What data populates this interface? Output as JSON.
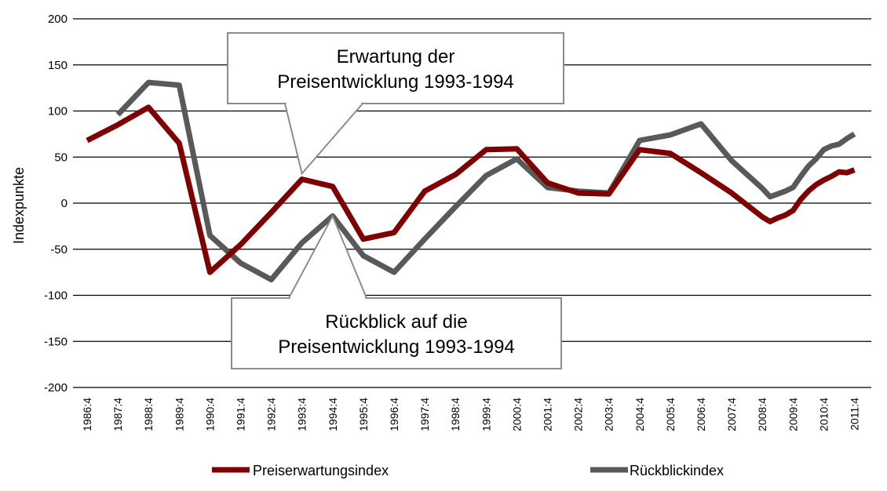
{
  "chart_data": {
    "type": "line",
    "title": "",
    "xlabel": "",
    "ylabel": "Indexpunkte",
    "ylim": [
      -200,
      200
    ],
    "yticks": [
      200,
      150,
      100,
      50,
      0,
      -50,
      -100,
      -150,
      -200
    ],
    "grid": "horizontal",
    "legend_position": "bottom",
    "categories": [
      "1986:4",
      "1987:4",
      "1988:4",
      "1989:4",
      "1990:4",
      "1991:4",
      "1992:4",
      "1993:4",
      "1994:4",
      "1995:4",
      "1996:4",
      "1997:4",
      "1998:4",
      "1999:4",
      "2000:4",
      "2001:4",
      "2002:4",
      "2003:4",
      "2004:4",
      "2005:4",
      "2006:4",
      "2007:4",
      "2008:4",
      "2009:4",
      "2010:4",
      "2011:4"
    ],
    "series": [
      {
        "name": "Preiserwartungsindex",
        "color": "#7f0000",
        "x": [
          "1986:4",
          "1987:4",
          "1988:4",
          "1989:4",
          "1990:4",
          "1991:4",
          "1992:4",
          "1993:4",
          "1994:4",
          "1995:4",
          "1996:4",
          "1997:4",
          "1998:4",
          "1999:4",
          "2000:4",
          "2001:4",
          "2002:4",
          "2003:4",
          "2004:4",
          "2005:4",
          "2006:4",
          "2007:4",
          "2008:4",
          "2009:1",
          "2009:2",
          "2009:3",
          "2009:4",
          "2010:1",
          "2010:2",
          "2010:3",
          "2010:4",
          "2011:1",
          "2011:2",
          "2011:3",
          "2011:4"
        ],
        "values": [
          68,
          85,
          104,
          65,
          -75,
          -45,
          -10,
          26,
          18,
          -39,
          -32,
          13,
          31,
          58,
          59,
          22,
          11,
          10,
          58,
          54,
          33,
          11,
          -15,
          -20,
          -16,
          -13,
          -8,
          4,
          13,
          20,
          25,
          29,
          34,
          33,
          36
        ]
      },
      {
        "name": "Rückblickindex",
        "color": "#595959",
        "x": [
          "1987:4",
          "1988:4",
          "1989:4",
          "1990:4",
          "1991:4",
          "1992:4",
          "1993:4",
          "1994:4",
          "1995:4",
          "1996:4",
          "1997:4",
          "1998:4",
          "1999:4",
          "2000:4",
          "2001:4",
          "2002:4",
          "2003:4",
          "2004:4",
          "2005:4",
          "2006:4",
          "2007:4",
          "2008:4",
          "2009:1",
          "2009:2",
          "2009:3",
          "2009:4",
          "2010:1",
          "2010:2",
          "2010:3",
          "2010:4",
          "2011:1",
          "2011:2",
          "2011:3",
          "2011:4"
        ],
        "values": [
          96,
          131,
          128,
          -35,
          -65,
          -83,
          -43,
          -14,
          -57,
          -75,
          -39,
          -4,
          30,
          48,
          17,
          13,
          11,
          68,
          74,
          86,
          46,
          16,
          7,
          10,
          13,
          17,
          29,
          40,
          48,
          58,
          62,
          64,
          70,
          75
        ]
      }
    ],
    "annotations": [
      {
        "id": "erwartung",
        "lines": [
          "Erwartung der",
          "Preisentwicklung 1993-1994"
        ],
        "target": [
          "1993:4",
          27
        ]
      },
      {
        "id": "rueckblick",
        "lines": [
          "Rückblick auf die",
          "Preisentwicklung 1993-1994"
        ],
        "target": [
          "1994:4",
          -14
        ]
      }
    ]
  }
}
